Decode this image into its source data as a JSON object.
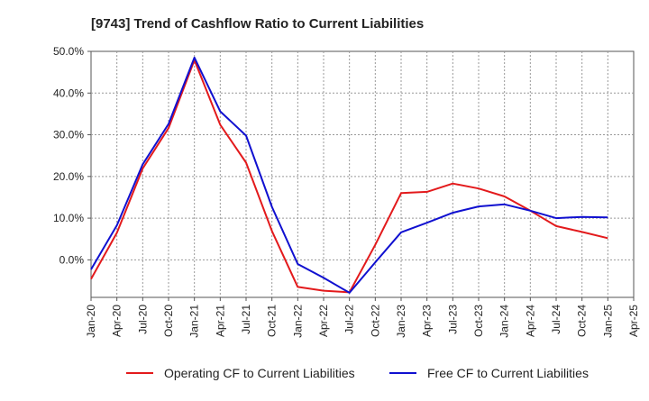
{
  "chart_data": {
    "type": "line",
    "title": "[9743]  Trend of Cashflow Ratio to Current Liabilities",
    "xlabel": "",
    "ylabel": "",
    "ylim": [
      -9,
      50
    ],
    "y_ticks": [
      "50.0%",
      "40.0%",
      "30.0%",
      "20.0%",
      "10.0%",
      "0.0%"
    ],
    "y_tick_values": [
      50,
      40,
      30,
      20,
      10,
      0
    ],
    "x_ticks": [
      "Jan-20",
      "Apr-20",
      "Jul-20",
      "Oct-20",
      "Jan-21",
      "Apr-21",
      "Jul-21",
      "Oct-21",
      "Jan-22",
      "Apr-22",
      "Jul-22",
      "Oct-22",
      "Jan-23",
      "Apr-23",
      "Jul-23",
      "Oct-23",
      "Jan-24",
      "Apr-24",
      "Jul-24",
      "Oct-24",
      "Jan-25",
      "Apr-25"
    ],
    "grid": true,
    "legend_position": "bottom",
    "series": [
      {
        "name": "Operating CF to Current Liabilities",
        "color": "#e31a1c",
        "values": [
          -4.6,
          6.5,
          21.9,
          31.6,
          47.9,
          32.4,
          23.3,
          6.9,
          -6.5,
          -7.4,
          -7.8,
          3.6,
          16.0,
          16.3,
          18.3,
          17.1,
          15.2,
          11.8,
          8.1,
          6.7,
          5.2
        ]
      },
      {
        "name": "Free CF to Current Liabilities",
        "color": "#1010d0",
        "values": [
          -2.3,
          8.3,
          22.9,
          32.6,
          48.5,
          35.6,
          29.8,
          12.7,
          -1.0,
          -4.3,
          -7.9,
          -0.6,
          6.6,
          8.9,
          11.3,
          12.8,
          13.3,
          11.8,
          10.0,
          10.3,
          10.2
        ]
      }
    ]
  }
}
